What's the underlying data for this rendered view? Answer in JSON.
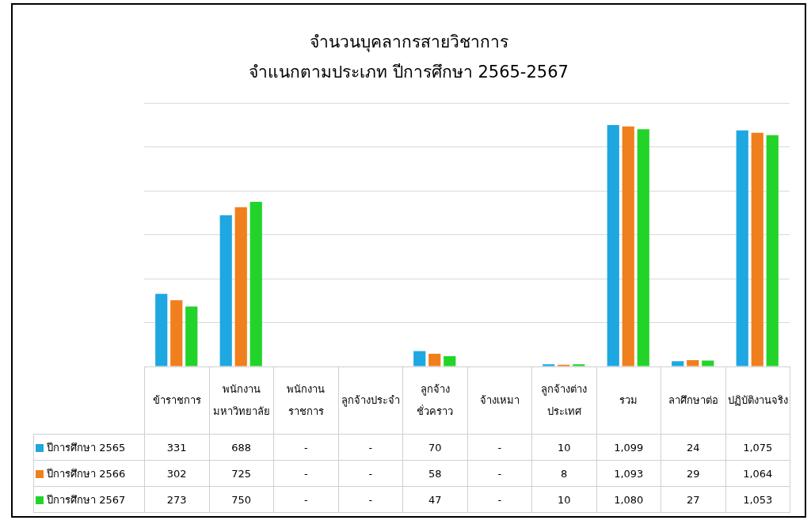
{
  "chart_data": {
    "type": "bar",
    "title": "จำนวนบุคลากรสายวิชาการ",
    "subtitle": "จำแนกตามประเภท ปีการศึกษา 2565-2567",
    "categories": [
      "ข้าราชการ",
      "พนักงานมหาวิทยาลัย",
      "พนักงานราชการ",
      "ลูกจ้างประจำ",
      "ลูกจ้างชั่วคราว",
      "จ้างเหมา",
      "ลูกจ้างต่างประเทศ",
      "รวม",
      "ลาศึกษาต่อ",
      "ปฏิบัติงานจริง"
    ],
    "series": [
      {
        "name": "ปีการศึกษา 2565",
        "color": "#1ea7e1",
        "values": [
          331,
          688,
          null,
          null,
          70,
          null,
          10,
          1099,
          24,
          1075
        ],
        "value_labels": [
          "331",
          "688",
          "-",
          "-",
          "70",
          "-",
          "10",
          "1,099",
          "24",
          "1,075"
        ]
      },
      {
        "name": "ปีการศึกษา 2566",
        "color": "#f07f1d",
        "values": [
          302,
          725,
          null,
          null,
          58,
          null,
          8,
          1093,
          29,
          1064
        ],
        "value_labels": [
          "302",
          "725",
          "-",
          "-",
          "58",
          "-",
          "8",
          "1,093",
          "29",
          "1,064"
        ]
      },
      {
        "name": "ปีการศึกษา 2567",
        "color": "#22d42a",
        "values": [
          273,
          750,
          null,
          null,
          47,
          null,
          10,
          1080,
          27,
          1053
        ],
        "value_labels": [
          "273",
          "750",
          "-",
          "-",
          "47",
          "-",
          "10",
          "1,080",
          "27",
          "1,053"
        ]
      }
    ],
    "ylim": [
      0,
      1200
    ],
    "grid": "y",
    "legend": "left"
  }
}
